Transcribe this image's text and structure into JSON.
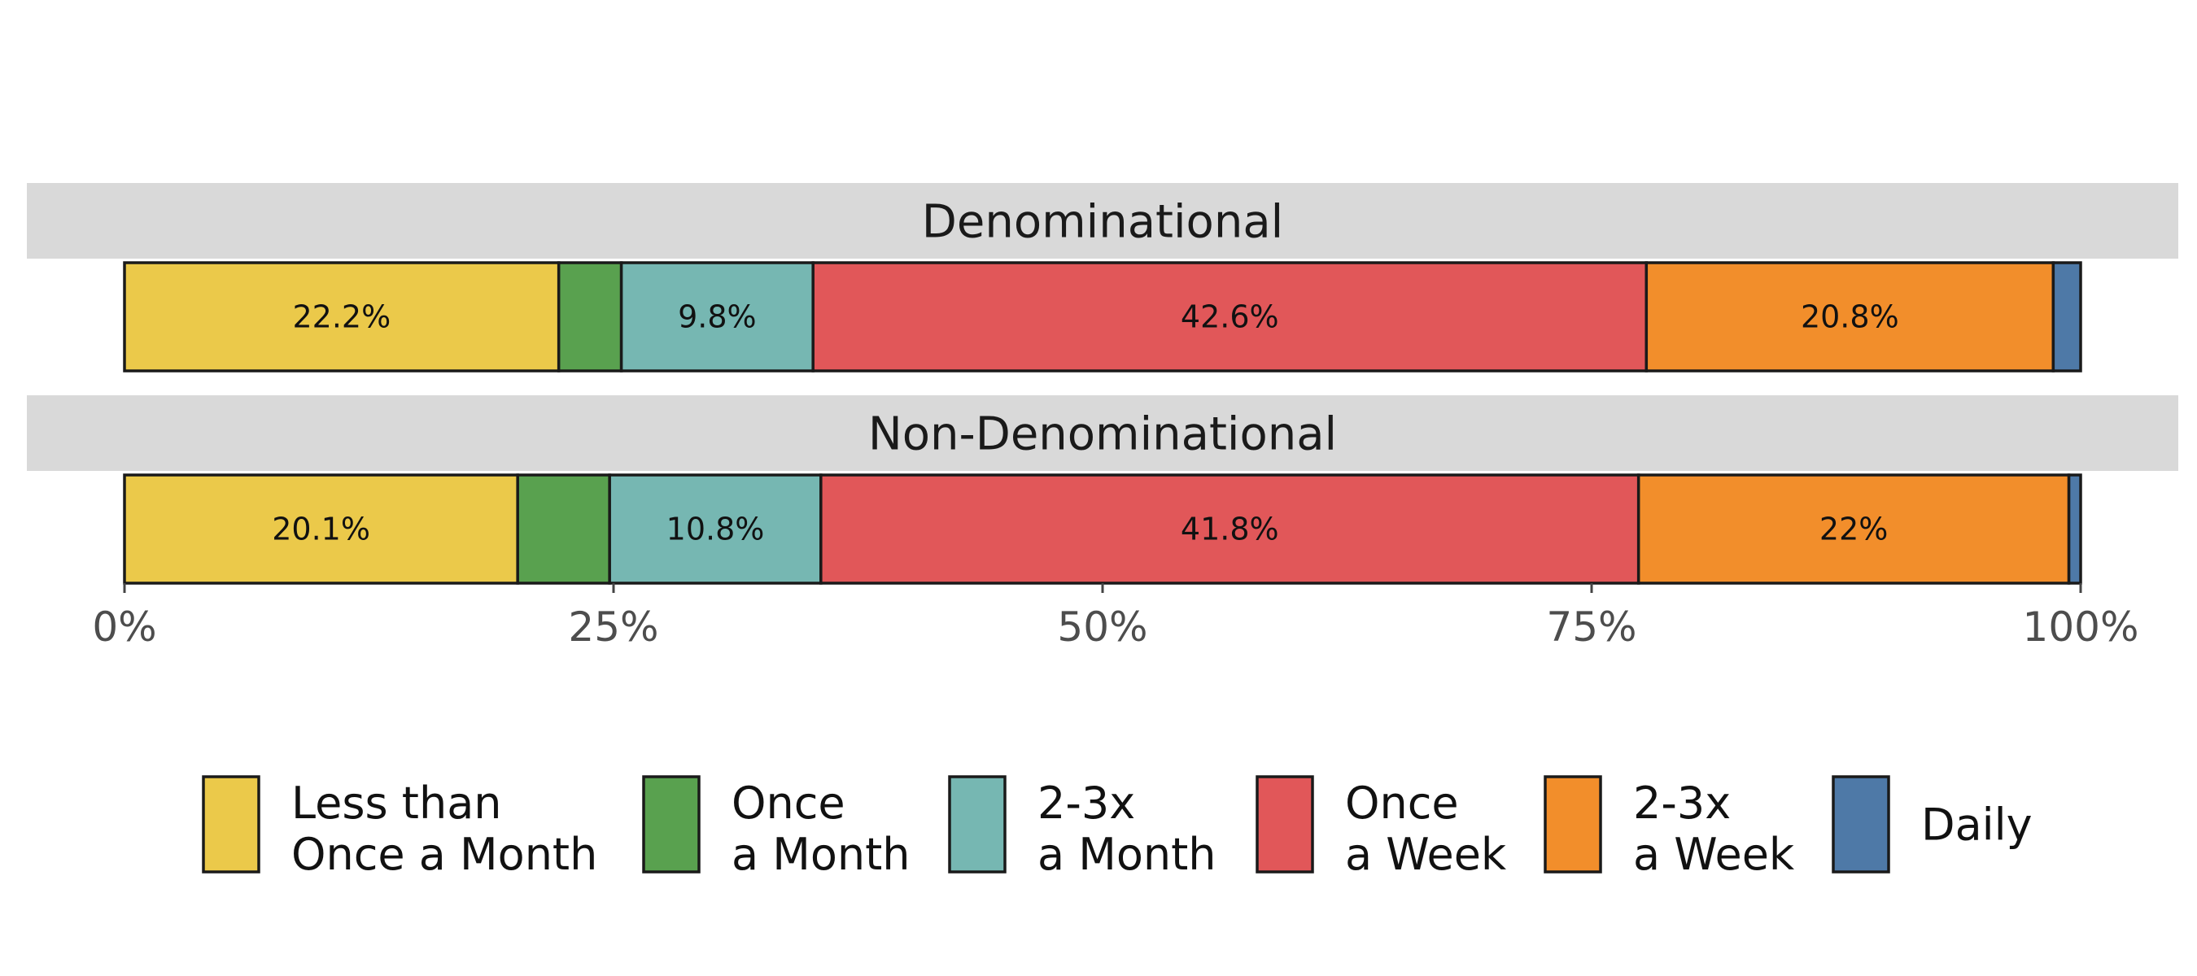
{
  "chart_data": {
    "type": "bar",
    "orientation": "horizontal",
    "stacked": "percent",
    "facets": [
      {
        "name": "Denominational",
        "values": [
          22.2,
          3.2,
          9.8,
          42.6,
          20.8,
          1.4
        ],
        "labels": [
          "22.2%",
          "",
          "9.8%",
          "42.6%",
          "20.8%",
          ""
        ]
      },
      {
        "name": "Non-Denominational",
        "values": [
          20.1,
          4.7,
          10.8,
          41.8,
          22.0,
          0.6
        ],
        "labels": [
          "20.1%",
          "",
          "10.8%",
          "41.8%",
          "22%",
          ""
        ]
      }
    ],
    "categories": [
      {
        "line1": "Less than",
        "line2": "Once a Month",
        "color": "#ebc94a"
      },
      {
        "line1": "Once",
        "line2": "a Month",
        "color": "#59a14f"
      },
      {
        "line1": "2-3x",
        "line2": "a Month",
        "color": "#76b7b2"
      },
      {
        "line1": "Once",
        "line2": "a Week",
        "color": "#e15759"
      },
      {
        "line1": "2-3x",
        "line2": "a Week",
        "color": "#f28e2b"
      },
      {
        "line1": "Daily",
        "line2": "",
        "color": "#4e79a7"
      }
    ],
    "xticks": [
      0,
      25,
      50,
      75,
      100
    ],
    "xtick_labels": [
      "0%",
      "25%",
      "50%",
      "75%",
      "100%"
    ],
    "xlim": [
      0,
      100
    ],
    "legend_position": "bottom",
    "grid": false
  }
}
